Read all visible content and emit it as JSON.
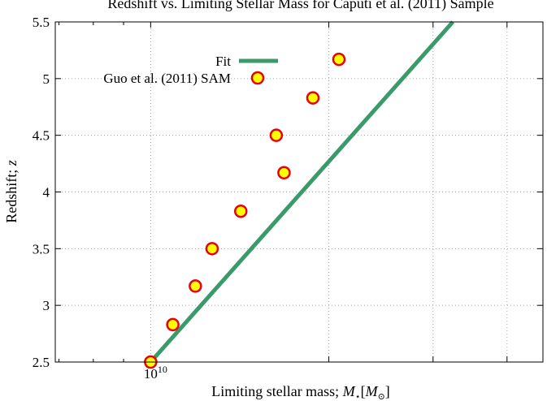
{
  "chart_data": {
    "type": "scatter",
    "title": "Redshift vs. Limiting Stellar Mass for Caputi et al. (2011) Sample",
    "xlabel_prefix": "Limiting stellar mass; ",
    "xlabel_symbol": "M",
    "xlabel_subscript": "⋆",
    "xlabel_bracket_open": "[",
    "xlabel_unit": "M",
    "xlabel_unit_subscript": "⊙",
    "xlabel_bracket_close": "]",
    "ylabel_prefix": "Redshift; ",
    "ylabel_symbol": "z",
    "x_scale": "log",
    "xlim": [
      6900000000.0,
      46000000000.0
    ],
    "ylim": [
      2.5,
      5.5
    ],
    "x_tick_base": "10",
    "x_tick_exponent": "10",
    "y_ticks": [
      "2.5",
      "3",
      "3.5",
      "4",
      "4.5",
      "5",
      "5.5"
    ],
    "legend_position": "top-left",
    "series": [
      {
        "name": "Fit",
        "kind": "line",
        "color": "#3a9a6a",
        "x": [
          10000000000.0,
          32400000000.0
        ],
        "y": [
          2.5,
          5.5
        ]
      },
      {
        "name": "Guo et al. (2011) SAM",
        "kind": "points",
        "fill": "#ffff00",
        "stroke": "#e8000b",
        "x": [
          10000000000.0,
          10900000000.0,
          11900000000.0,
          12700000000.0,
          14200000000.0,
          16300000000.0,
          16800000000.0,
          18800000000.0,
          20800000000.0
        ],
        "y": [
          2.5,
          2.83,
          3.17,
          3.5,
          3.83,
          4.5,
          4.17,
          4.83,
          5.17
        ]
      }
    ]
  }
}
